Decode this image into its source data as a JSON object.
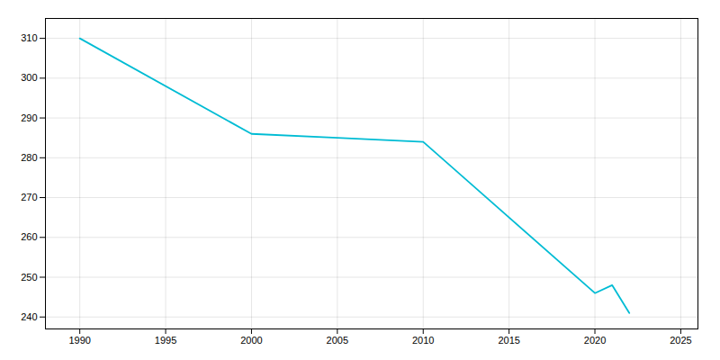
{
  "chart_data": {
    "type": "line",
    "x": [
      1990,
      2000,
      2005,
      2010,
      2020,
      2021,
      2022
    ],
    "values": [
      310,
      286,
      285,
      284,
      246,
      248,
      241
    ],
    "color": "#00bcd4",
    "xlim": [
      1988,
      2026
    ],
    "ylim": [
      237,
      315
    ],
    "xticks": [
      1990,
      1995,
      2000,
      2005,
      2010,
      2015,
      2020,
      2025
    ],
    "yticks": [
      240,
      250,
      260,
      270,
      280,
      290,
      300,
      310
    ],
    "grid": true
  }
}
